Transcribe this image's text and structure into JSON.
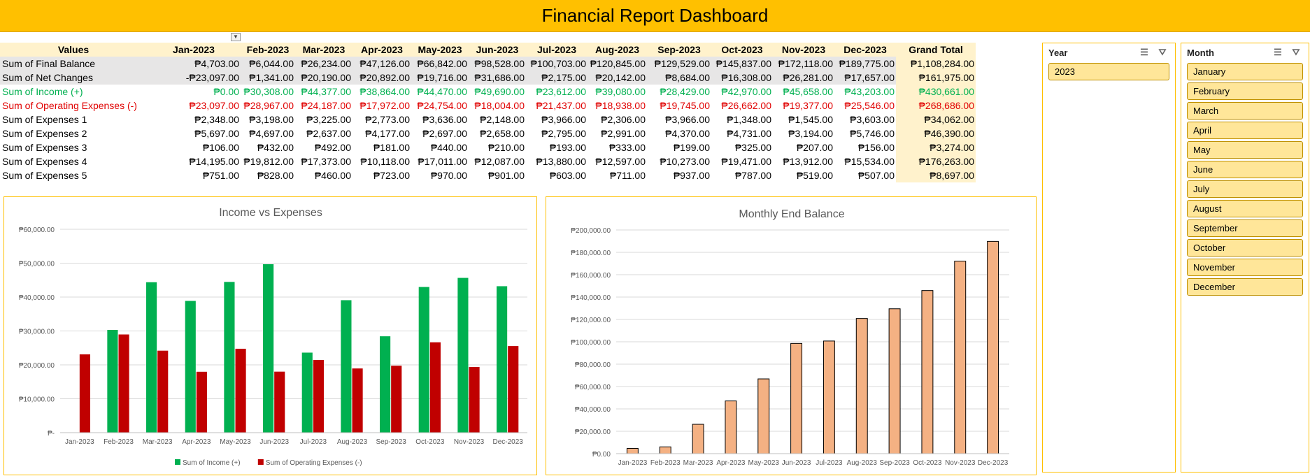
{
  "title": "Financial Report Dashboard",
  "pivot": {
    "corner_label": "Values",
    "columns": [
      "Jan-2023",
      "Feb-2023",
      "Mar-2023",
      "Apr-2023",
      "May-2023",
      "Jun-2023",
      "Jul-2023",
      "Aug-2023",
      "Sep-2023",
      "Oct-2023",
      "Nov-2023",
      "Dec-2023"
    ],
    "grand_total_label": "Grand Total",
    "rows": [
      {
        "label": "Sum of Final Balance",
        "style": "grey",
        "values": [
          "₱4,703.00",
          "₱6,044.00",
          "₱26,234.00",
          "₱47,126.00",
          "₱66,842.00",
          "₱98,528.00",
          "₱100,703.00",
          "₱120,845.00",
          "₱129,529.00",
          "₱145,837.00",
          "₱172,118.00",
          "₱189,775.00"
        ],
        "total": "₱1,108,284.00"
      },
      {
        "label": "Sum of Net Changes",
        "style": "grey",
        "values": [
          "-₱23,097.00",
          "₱1,341.00",
          "₱20,190.00",
          "₱20,892.00",
          "₱19,716.00",
          "₱31,686.00",
          "₱2,175.00",
          "₱20,142.00",
          "₱8,684.00",
          "₱16,308.00",
          "₱26,281.00",
          "₱17,657.00"
        ],
        "total": "₱161,975.00"
      },
      {
        "label": "Sum of Income (+)",
        "style": "green",
        "values": [
          "₱0.00",
          "₱30,308.00",
          "₱44,377.00",
          "₱38,864.00",
          "₱44,470.00",
          "₱49,690.00",
          "₱23,612.00",
          "₱39,080.00",
          "₱28,429.00",
          "₱42,970.00",
          "₱45,658.00",
          "₱43,203.00"
        ],
        "total": "₱430,661.00"
      },
      {
        "label": "Sum of Operating Expenses (-)",
        "style": "red",
        "values": [
          "₱23,097.00",
          "₱28,967.00",
          "₱24,187.00",
          "₱17,972.00",
          "₱24,754.00",
          "₱18,004.00",
          "₱21,437.00",
          "₱18,938.00",
          "₱19,745.00",
          "₱26,662.00",
          "₱19,377.00",
          "₱25,546.00"
        ],
        "total": "₱268,686.00"
      },
      {
        "label": "Sum of Expenses 1",
        "style": "plain",
        "values": [
          "₱2,348.00",
          "₱3,198.00",
          "₱3,225.00",
          "₱2,773.00",
          "₱3,636.00",
          "₱2,148.00",
          "₱3,966.00",
          "₱2,306.00",
          "₱3,966.00",
          "₱1,348.00",
          "₱1,545.00",
          "₱3,603.00"
        ],
        "total": "₱34,062.00"
      },
      {
        "label": "Sum of Expenses 2",
        "style": "plain",
        "values": [
          "₱5,697.00",
          "₱4,697.00",
          "₱2,637.00",
          "₱4,177.00",
          "₱2,697.00",
          "₱2,658.00",
          "₱2,795.00",
          "₱2,991.00",
          "₱4,370.00",
          "₱4,731.00",
          "₱3,194.00",
          "₱5,746.00"
        ],
        "total": "₱46,390.00"
      },
      {
        "label": "Sum of Expenses 3",
        "style": "plain",
        "values": [
          "₱106.00",
          "₱432.00",
          "₱492.00",
          "₱181.00",
          "₱440.00",
          "₱210.00",
          "₱193.00",
          "₱333.00",
          "₱199.00",
          "₱325.00",
          "₱207.00",
          "₱156.00"
        ],
        "total": "₱3,274.00"
      },
      {
        "label": "Sum of Expenses 4",
        "style": "plain",
        "values": [
          "₱14,195.00",
          "₱19,812.00",
          "₱17,373.00",
          "₱10,118.00",
          "₱17,011.00",
          "₱12,087.00",
          "₱13,880.00",
          "₱12,597.00",
          "₱10,273.00",
          "₱19,471.00",
          "₱13,912.00",
          "₱15,534.00"
        ],
        "total": "₱176,263.00"
      },
      {
        "label": "Sum of Expenses 5",
        "style": "plain",
        "values": [
          "₱751.00",
          "₱828.00",
          "₱460.00",
          "₱723.00",
          "₱970.00",
          "₱901.00",
          "₱603.00",
          "₱711.00",
          "₱937.00",
          "₱787.00",
          "₱519.00",
          "₱507.00"
        ],
        "total": "₱8,697.00"
      }
    ]
  },
  "chart_data": [
    {
      "type": "bar",
      "title": "Income vs Expenses",
      "categories": [
        "Jan-2023",
        "Feb-2023",
        "Mar-2023",
        "Apr-2023",
        "May-2023",
        "Jun-2023",
        "Jul-2023",
        "Aug-2023",
        "Sep-2023",
        "Oct-2023",
        "Nov-2023",
        "Dec-2023"
      ],
      "series": [
        {
          "name": "Sum of Income (+)",
          "color": "#00B050",
          "values": [
            0,
            30308,
            44377,
            38864,
            44470,
            49690,
            23612,
            39080,
            28429,
            42970,
            45658,
            43203
          ]
        },
        {
          "name": "Sum of Operating Expenses (-)",
          "color": "#C00000",
          "values": [
            23097,
            28967,
            24187,
            17972,
            24754,
            18004,
            21437,
            18938,
            19745,
            26662,
            19377,
            25546
          ]
        }
      ],
      "ylim": [
        0,
        60000
      ],
      "yticks": [
        0,
        10000,
        20000,
        30000,
        40000,
        50000,
        60000
      ],
      "ytick_labels": [
        "₱-",
        "₱10,000.00",
        "₱20,000.00",
        "₱30,000.00",
        "₱40,000.00",
        "₱50,000.00",
        "₱60,000.00"
      ],
      "grid": true,
      "legend": "bottom"
    },
    {
      "type": "bar",
      "title": "Monthly End Balance",
      "categories": [
        "Jan-2023",
        "Feb-2023",
        "Mar-2023",
        "Apr-2023",
        "May-2023",
        "Jun-2023",
        "Jul-2023",
        "Aug-2023",
        "Sep-2023",
        "Oct-2023",
        "Nov-2023",
        "Dec-2023"
      ],
      "series": [
        {
          "color": "#F4B183",
          "values": [
            4703,
            6044,
            26234,
            47126,
            66842,
            98528,
            100703,
            120845,
            129529,
            145837,
            172118,
            189775
          ]
        }
      ],
      "ylim": [
        0,
        200000
      ],
      "yticks": [
        0,
        20000,
        40000,
        60000,
        80000,
        100000,
        120000,
        140000,
        160000,
        180000,
        200000
      ],
      "ytick_labels": [
        "₱0.00",
        "₱20,000.00",
        "₱40,000.00",
        "₱60,000.00",
        "₱80,000.00",
        "₱100,000.00",
        "₱120,000.00",
        "₱140,000.00",
        "₱160,000.00",
        "₱180,000.00",
        "₱200,000.00"
      ],
      "grid": true,
      "legend": "none"
    }
  ],
  "slicers": {
    "year": {
      "title": "Year",
      "items": [
        "2023"
      ]
    },
    "month": {
      "title": "Month",
      "items": [
        "January",
        "February",
        "March",
        "April",
        "May",
        "June",
        "July",
        "August",
        "September",
        "October",
        "November",
        "December"
      ]
    }
  },
  "icons": {
    "multi_select": "multi-select-icon",
    "clear_filter": "clear-filter-icon",
    "dropdown": "dropdown-arrow-icon"
  }
}
